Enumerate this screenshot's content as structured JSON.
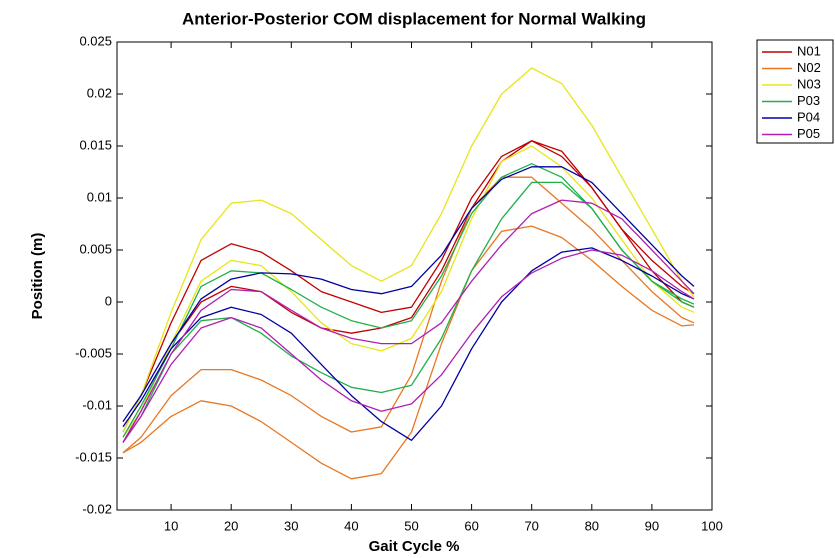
{
  "chart_data": {
    "type": "line",
    "title": "Anterior-Posterior COM displacement for Normal Walking",
    "x_label": "Gait Cycle %",
    "y_label": "Position (m)",
    "x": [
      2,
      5,
      10,
      15,
      20,
      25,
      30,
      35,
      40,
      45,
      50,
      55,
      60,
      65,
      70,
      75,
      80,
      85,
      90,
      95,
      97
    ],
    "xlim": [
      1,
      100
    ],
    "xticks": [
      10,
      20,
      30,
      40,
      50,
      60,
      70,
      80,
      90,
      100
    ],
    "ylim": [
      -0.02,
      0.025
    ],
    "yticks": [
      -0.02,
      -0.015,
      -0.01,
      -0.005,
      0,
      0.005,
      0.01,
      0.015,
      0.02,
      0.025
    ],
    "legend": "outside-right",
    "series": [
      {
        "name": "N01",
        "color": "#c00000",
        "values": [
          [
            -0.0125,
            -0.009,
            -0.002,
            0.004,
            0.0056,
            0.0048,
            0.003,
            0.001,
            0,
            -0.001,
            -0.0005,
            0.004,
            0.01,
            0.014,
            0.0155,
            0.014,
            0.011,
            0.007,
            0.004,
            0.0015,
            0.0008
          ],
          [
            -0.0135,
            -0.0105,
            -0.004,
            0,
            0.0015,
            0.001,
            -0.001,
            -0.0025,
            -0.003,
            -0.0025,
            -0.0015,
            0.003,
            0.009,
            0.0135,
            0.0155,
            0.0145,
            0.011,
            0.007,
            0.003,
            0,
            -0.0005
          ]
        ]
      },
      {
        "name": "N02",
        "color": "#e87722",
        "values": [
          [
            -0.0145,
            -0.013,
            -0.009,
            -0.0065,
            -0.0065,
            -0.0075,
            -0.009,
            -0.011,
            -0.0125,
            -0.012,
            -0.007,
            0.002,
            0.009,
            0.012,
            0.012,
            0.0095,
            0.007,
            0.004,
            0.001,
            -0.0015,
            -0.002
          ],
          [
            -0.0145,
            -0.0135,
            -0.011,
            -0.0095,
            -0.01,
            -0.0115,
            -0.0135,
            -0.0155,
            -0.017,
            -0.0165,
            -0.0125,
            -0.004,
            0.003,
            0.0068,
            0.0073,
            0.0062,
            0.004,
            0.0015,
            -0.0008,
            -0.0023,
            -0.0022
          ]
        ]
      },
      {
        "name": "N03",
        "color": "#e6e61a",
        "values": [
          [
            -0.0125,
            -0.009,
            -0.001,
            0.006,
            0.0095,
            0.0098,
            0.0085,
            0.006,
            0.0035,
            0.002,
            0.0035,
            0.0085,
            0.015,
            0.02,
            0.0225,
            0.021,
            0.017,
            0.012,
            0.007,
            0.002,
            0.0005
          ],
          [
            -0.013,
            -0.0105,
            -0.004,
            0.002,
            0.004,
            0.0035,
            0.001,
            -0.002,
            -0.004,
            -0.0047,
            -0.0035,
            0.001,
            0.008,
            0.0135,
            0.015,
            0.013,
            0.01,
            0.006,
            0.002,
            -0.0005,
            -0.001
          ]
        ]
      },
      {
        "name": "P03",
        "color": "#1fb04a",
        "values": [
          [
            -0.013,
            -0.01,
            -0.0045,
            0.0015,
            0.003,
            0.0028,
            0.0012,
            -0.0005,
            -0.0018,
            -0.0025,
            -0.0018,
            0.0025,
            0.0085,
            0.012,
            0.0133,
            0.012,
            0.009,
            0.005,
            0.002,
            0,
            -0.0005
          ],
          [
            -0.0135,
            -0.011,
            -0.005,
            -0.0018,
            -0.0015,
            -0.003,
            -0.0052,
            -0.0068,
            -0.0082,
            -0.0087,
            -0.008,
            -0.0035,
            0.003,
            0.008,
            0.0115,
            0.0115,
            0.009,
            0.005,
            0.002,
            0.0003,
            -0.0002
          ]
        ]
      },
      {
        "name": "P04",
        "color": "#0000a0",
        "values": [
          [
            -0.0115,
            -0.009,
            -0.004,
            0.0003,
            0.0022,
            0.0028,
            0.0027,
            0.0022,
            0.0012,
            0.0008,
            0.0015,
            0.0045,
            0.009,
            0.0118,
            0.013,
            0.013,
            0.0115,
            0.0085,
            0.0055,
            0.0025,
            0.0015
          ],
          [
            -0.012,
            -0.0095,
            -0.0045,
            -0.0015,
            -0.0005,
            -0.0012,
            -0.003,
            -0.006,
            -0.009,
            -0.0115,
            -0.0133,
            -0.01,
            -0.0045,
            0,
            0.003,
            0.0048,
            0.0052,
            0.004,
            0.0025,
            0.0008,
            0.0003
          ]
        ]
      },
      {
        "name": "P05",
        "color": "#b020b0",
        "values": [
          [
            -0.0135,
            -0.0105,
            -0.005,
            -0.0008,
            0.0012,
            0.001,
            -0.0008,
            -0.0025,
            -0.0035,
            -0.004,
            -0.004,
            -0.002,
            0.002,
            0.0055,
            0.0085,
            0.0098,
            0.0095,
            0.008,
            0.005,
            0.002,
            0.0008
          ],
          [
            -0.0135,
            -0.011,
            -0.006,
            -0.0025,
            -0.0015,
            -0.0025,
            -0.005,
            -0.0075,
            -0.0095,
            -0.0105,
            -0.0098,
            -0.007,
            -0.003,
            0.0005,
            0.0028,
            0.0042,
            0.005,
            0.0045,
            0.003,
            0.001,
            0.0003
          ]
        ]
      }
    ]
  }
}
